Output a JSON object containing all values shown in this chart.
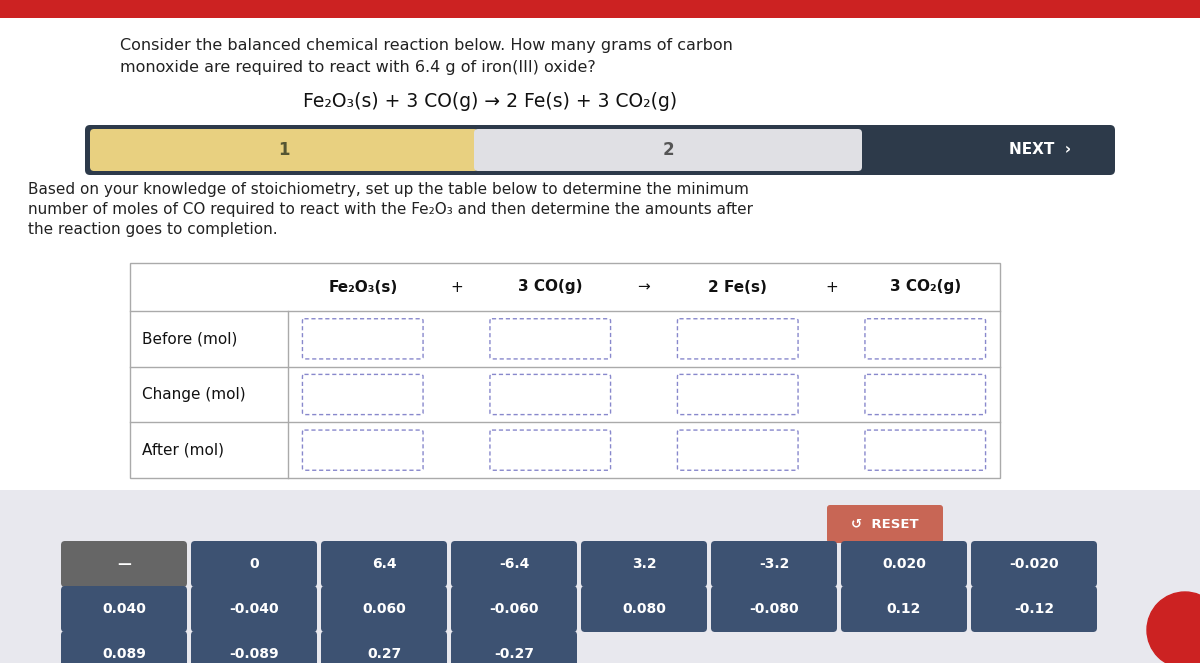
{
  "bg_color": "#e8e8ee",
  "white_bg": "#ffffff",
  "red_bar_color": "#cc2222",
  "dark_nav_color": "#2d3a4a",
  "yellow_tab_color": "#e8d080",
  "gray_tab_color": "#e0e0e4",
  "button_color": "#3d5272",
  "button_dark_color": "#666666",
  "reset_button_color": "#c86655",
  "title_text1": "Consider the balanced chemical reaction below. How many grams of carbon",
  "title_text2": "monoxide are required to react with 6.4 g of iron(III) oxide?",
  "equation": "Fe₂O₃(s) + 3 CO(g) → 2 Fe(s) + 3 CO₂(g)",
  "nav_label1": "1",
  "nav_label2": "2",
  "nav_next": "NEXT  ›",
  "body_text1": "Based on your knowledge of stoichiometry, set up the table below to determine the minimum",
  "body_text2": "number of moles of CO required to react with the Fe₂O₃ and then determine the amounts after",
  "body_text3": "the reaction goes to completion.",
  "table_header": [
    "Fe₂O₃(s)",
    "+",
    "3 CO(g)",
    "→",
    "2 Fe(s)",
    "+",
    "3 CO₂(g)"
  ],
  "row_labels": [
    "Before (mol)",
    "Change (mol)",
    "After (mol)"
  ],
  "buttons_row1": [
    "—",
    "0",
    "6.4",
    "-6.4",
    "3.2",
    "-3.2",
    "0.020",
    "-0.020"
  ],
  "buttons_row2": [
    "0.040",
    "-0.040",
    "0.060",
    "-0.060",
    "0.080",
    "-0.080",
    "0.12",
    "-0.12"
  ],
  "buttons_row3": [
    "0.089",
    "-0.089",
    "0.27",
    "-0.27"
  ]
}
